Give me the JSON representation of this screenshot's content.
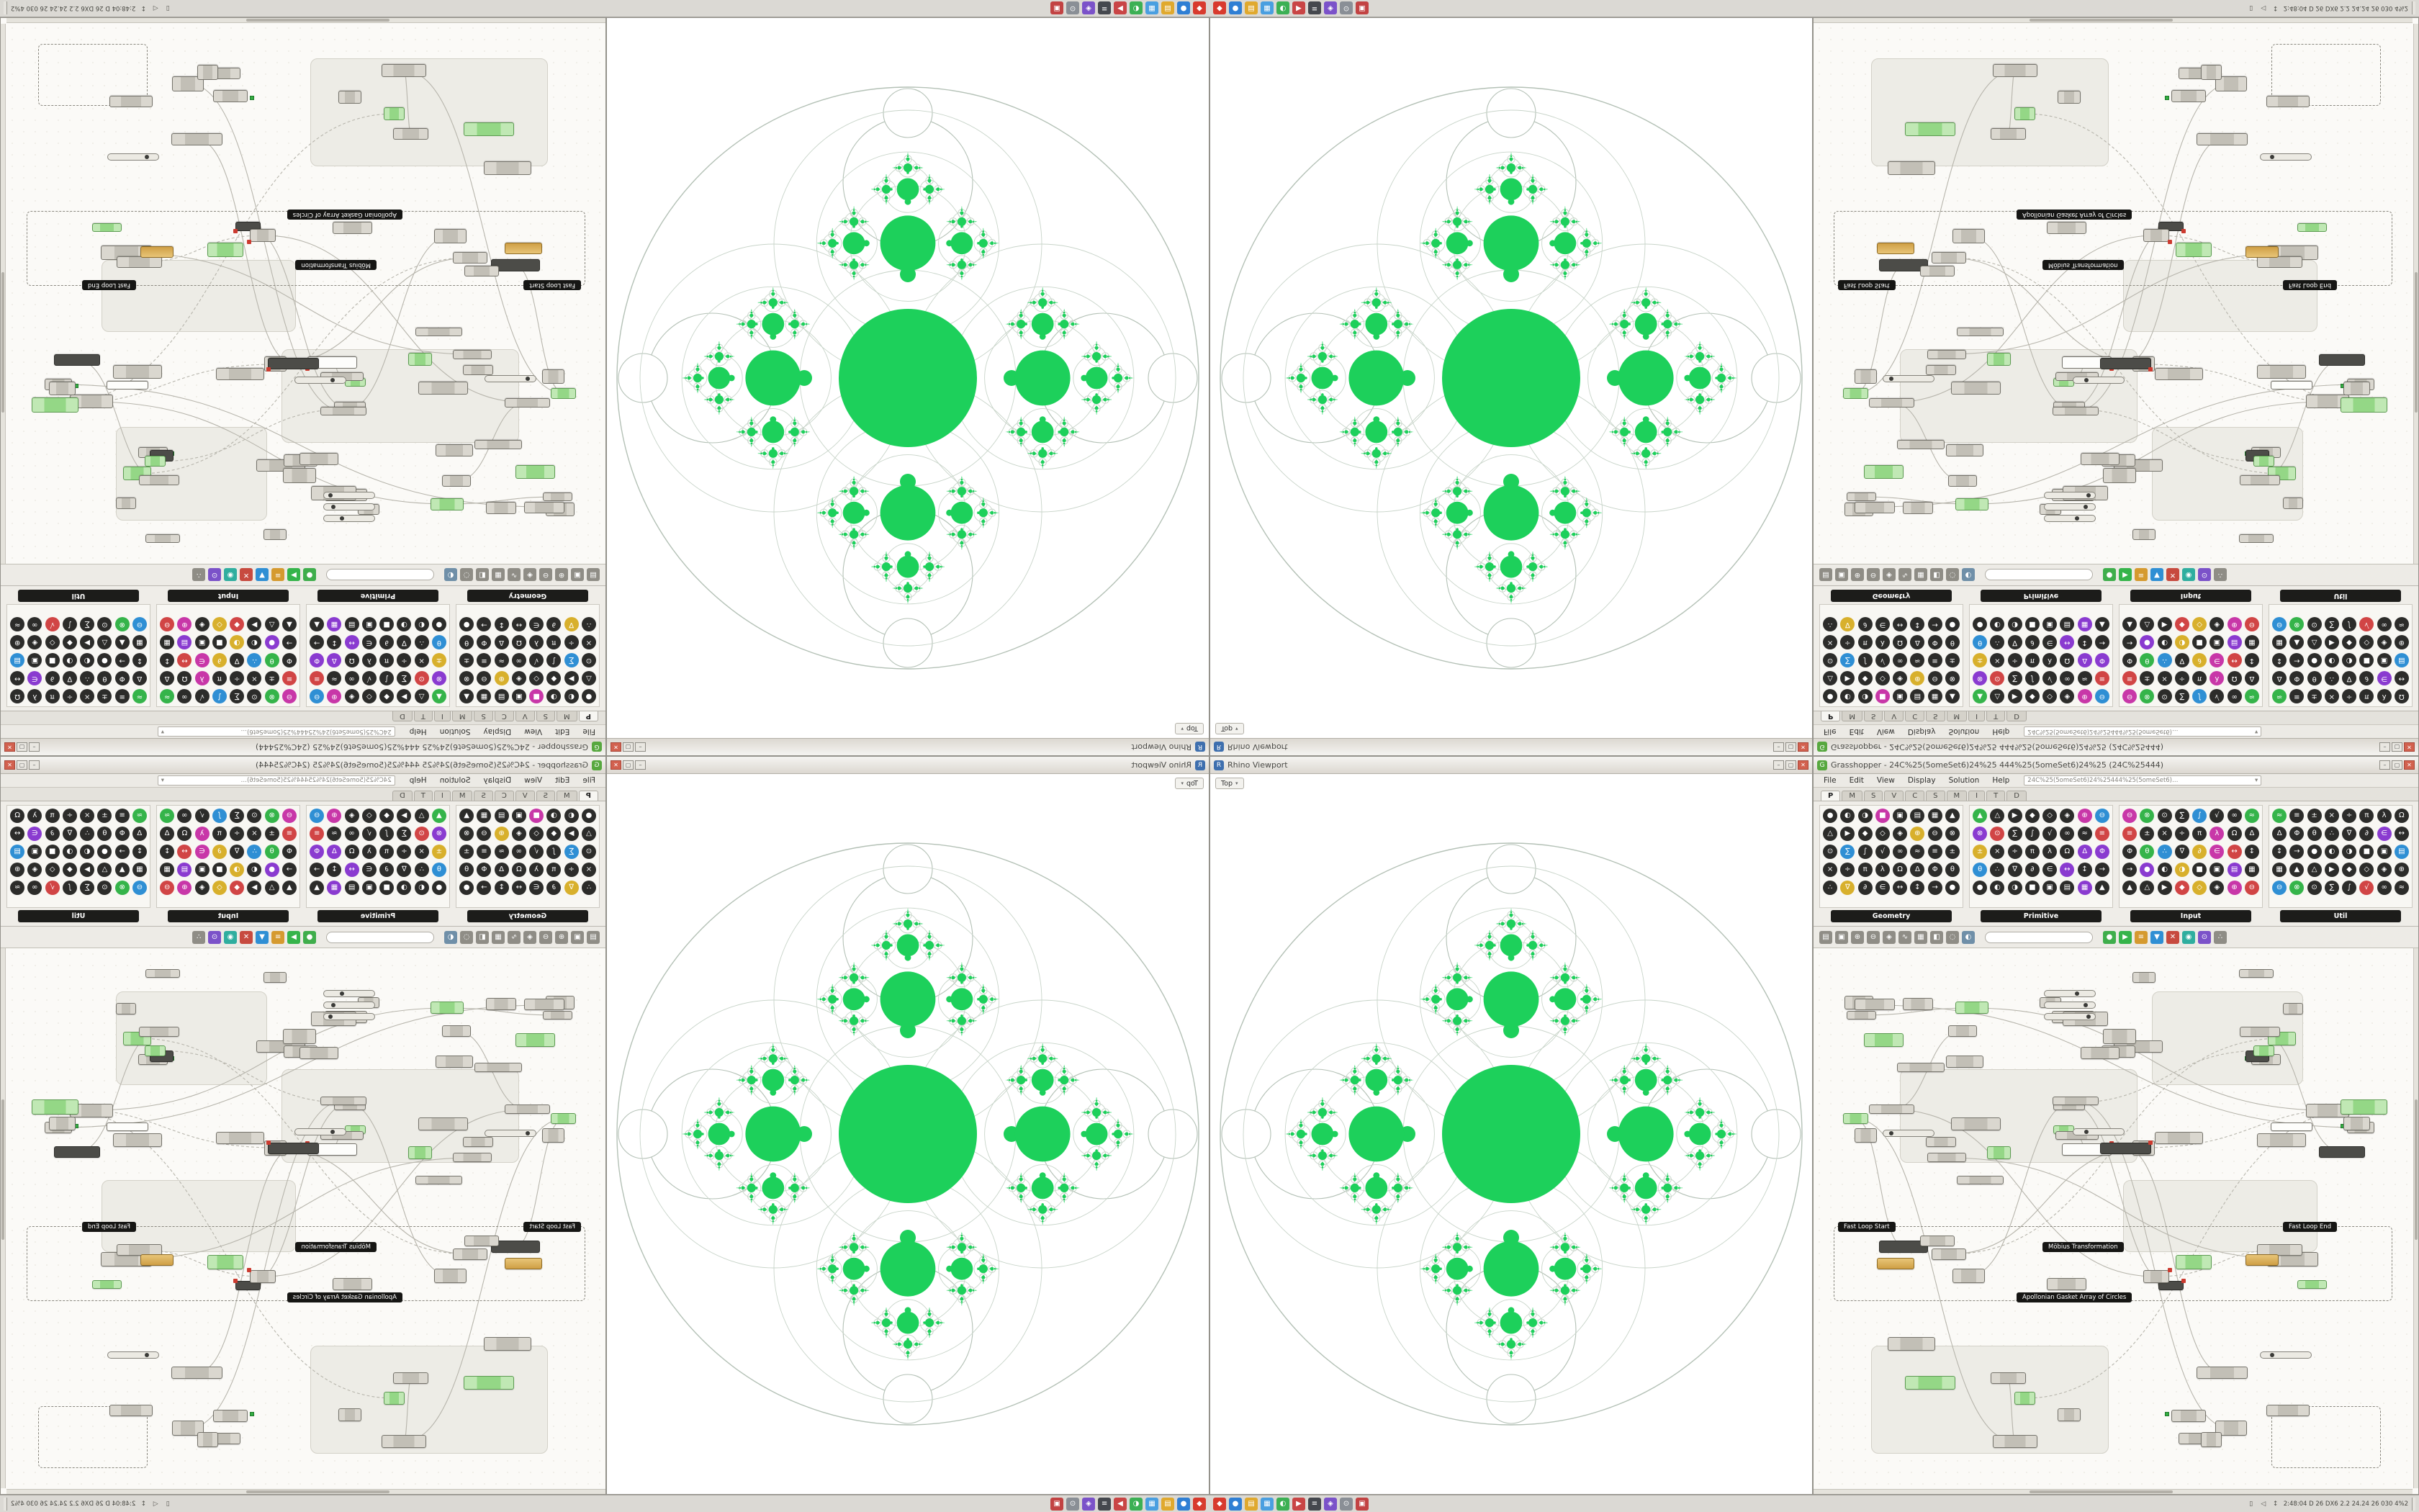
{
  "window_controls": {
    "minimize": "–",
    "maximize": "▢",
    "close": "✕"
  },
  "rhino": {
    "title": "Rhino Viewport",
    "tab": "Top",
    "chevron": "▾"
  },
  "grasshopper": {
    "title": "Grasshopper - 24C%25(5omeSet6)24%25 444%25(5omeSet6)24%25 (24C%25444)",
    "doc_combo": "24C%25(5omeSet6)24%25444%25(5omeSet6)…",
    "menu": [
      "File",
      "Edit",
      "View",
      "Display",
      "Solution",
      "Help"
    ],
    "tab_letters": [
      "P",
      "M",
      "S",
      "V",
      "C",
      "S",
      "M",
      "I",
      "T",
      "D"
    ],
    "active_tab_index": 0,
    "panels": [
      {
        "label": "Geometry",
        "color_freq": 0.06
      },
      {
        "label": "Primitive",
        "color_freq": 0.12
      },
      {
        "label": "Input",
        "color_freq": 0.5
      },
      {
        "label": "Util",
        "color_freq": 0.18
      }
    ],
    "icon_colors": [
      "#c837a8",
      "#8a3bd0",
      "#2f8fd4",
      "#35b44a",
      "#d8b02c",
      "#d14545"
    ],
    "search_placeholder": "",
    "canvas_pills": [
      "Fast Loop Start",
      "Fast Loop End",
      "Möbius Transformation",
      "Apollonian Gasket Array of Circles"
    ],
    "toolbar_icons": [
      {
        "name": "open-file-icon",
        "glyph": "▤",
        "color": "#8f8d86"
      },
      {
        "name": "save-file-icon",
        "glyph": "▣",
        "color": "#8f8d86"
      },
      {
        "name": "zoom-in-icon",
        "glyph": "⊕",
        "color": "#8f8d86"
      },
      {
        "name": "zoom-out-icon",
        "glyph": "⊖",
        "color": "#8f8d86"
      },
      {
        "name": "zoom-extents-icon",
        "glyph": "◈",
        "color": "#8f8d86"
      },
      {
        "name": "sketch-tool-icon",
        "glyph": "∿",
        "color": "#8f8d86"
      },
      {
        "name": "group-tool-icon",
        "glyph": "▦",
        "color": "#8f8d86"
      },
      {
        "name": "cluster-tool-icon",
        "glyph": "◧",
        "color": "#8f8d86"
      },
      {
        "name": "preview-off-icon",
        "glyph": "◌",
        "color": "#8f8d86"
      },
      {
        "name": "preview-wire-icon",
        "glyph": "◐",
        "color": "#6f8fa8"
      },
      {
        "name": "preview-shaded-icon",
        "glyph": "●",
        "color": "#3fae4c"
      },
      {
        "name": "solver-play-icon",
        "glyph": "▶",
        "color": "#35b44a"
      },
      {
        "name": "solver-pause-icon",
        "glyph": "≡",
        "color": "#d59a2f"
      },
      {
        "name": "bake-icon",
        "glyph": "▼",
        "color": "#2f8fd4"
      },
      {
        "name": "snapshot-icon",
        "glyph": "✕",
        "color": "#c74a3f"
      },
      {
        "name": "camera-icon",
        "glyph": "◉",
        "color": "#2fae9f"
      },
      {
        "name": "display-settings-icon",
        "glyph": "⊙",
        "color": "#7b52c9"
      },
      {
        "name": "canvas-settings-icon",
        "glyph": "∴",
        "color": "#8f8d86"
      }
    ]
  },
  "desktop": {
    "taskbar": {
      "tray_text": "2:48:04 D 26 DX6 2.2 24.24 26 030 4%2",
      "tray_icons": [
        {
          "name": "network-icon",
          "glyph": "↕"
        },
        {
          "name": "volume-icon",
          "glyph": "◁"
        },
        {
          "name": "battery-icon",
          "glyph": "▯"
        }
      ],
      "icons": [
        {
          "name": "start-icon",
          "color": "#d83b2e",
          "glyph": "◆"
        },
        {
          "name": "browser-icon",
          "color": "#2f7fd4",
          "glyph": "●"
        },
        {
          "name": "file-explorer-icon",
          "color": "#e0a92e",
          "glyph": "▤"
        },
        {
          "name": "mail-icon",
          "color": "#4a9fe0",
          "glyph": "▦"
        },
        {
          "name": "rhino-app-icon",
          "color": "#3cb054",
          "glyph": "◐"
        },
        {
          "name": "media-icon",
          "color": "#c94545",
          "glyph": "▶"
        },
        {
          "name": "terminal-icon",
          "color": "#45484e",
          "glyph": "≡"
        },
        {
          "name": "chat-icon",
          "color": "#7b52c9",
          "glyph": "◈"
        },
        {
          "name": "settings-icon",
          "color": "#8a8f96",
          "glyph": "⊙"
        },
        {
          "name": "task-monitor-icon",
          "color": "#c24343",
          "glyph": "▣"
        }
      ]
    }
  },
  "fractal": {
    "green": "#1dd05b",
    "lace": "#c8d4c9",
    "outline": "#b4c1b6"
  }
}
